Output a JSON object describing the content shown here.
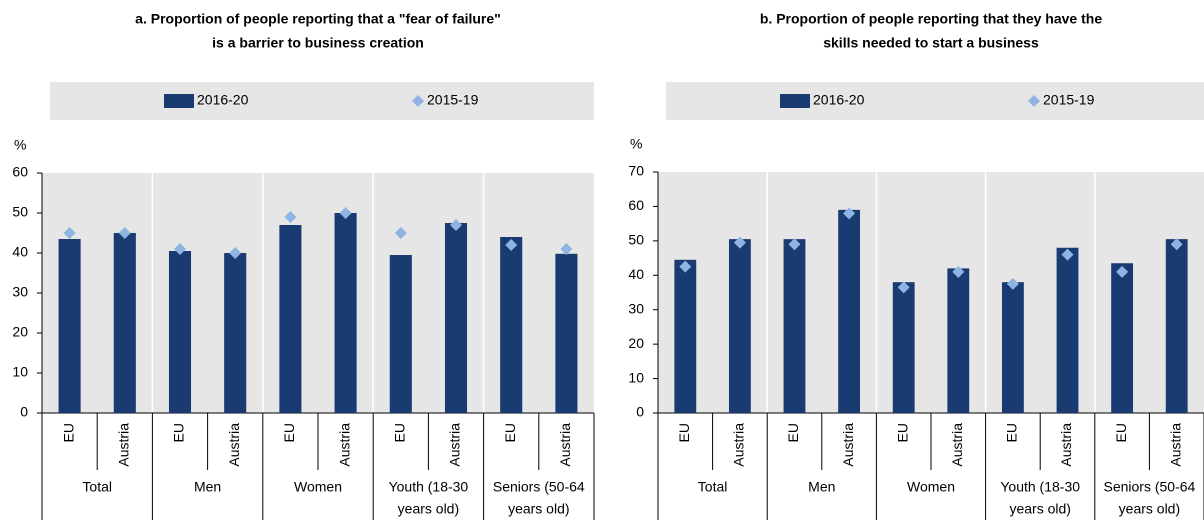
{
  "chart_data": [
    {
      "type": "bar",
      "title": [
        "a. Proportion of people reporting that a \"fear of failure\"",
        "is a barrier to business creation"
      ],
      "y_label": "%",
      "categories": [
        "EU",
        "Austria",
        "EU",
        "Austria",
        "EU",
        "Austria",
        "EU",
        "Austria",
        "EU",
        "Austria"
      ],
      "groups": [
        [
          "Total"
        ],
        [
          "Men"
        ],
        [
          "Women"
        ],
        [
          "Youth (18-30",
          "years old)"
        ],
        [
          "Seniors (50-64",
          "years old)"
        ]
      ],
      "series": [
        {
          "name": "2016-20",
          "color": "#1a3a72",
          "marker": "bar",
          "values": [
            43.5,
            45,
            40.5,
            40,
            47,
            50,
            39.5,
            47.5,
            44,
            39.8
          ]
        },
        {
          "name": "2015-19",
          "color": "#8fb4e3",
          "marker": "diamond",
          "values": [
            45,
            45,
            41,
            40,
            49,
            50,
            45,
            47,
            42,
            41
          ]
        }
      ],
      "ylim": [
        0,
        60
      ],
      "yticks": [
        0,
        10,
        20,
        30,
        40,
        50,
        60
      ]
    },
    {
      "type": "bar",
      "title": [
        "b. Proportion of people reporting that they have the",
        "skills needed to start a business"
      ],
      "y_label": "%",
      "categories": [
        "EU",
        "Austria",
        "EU",
        "Austria",
        "EU",
        "Austria",
        "EU",
        "Austria",
        "EU",
        "Austria"
      ],
      "groups": [
        [
          "Total"
        ],
        [
          "Men"
        ],
        [
          "Women"
        ],
        [
          "Youth (18-30",
          "years old)"
        ],
        [
          "Seniors (50-64",
          "years old)"
        ]
      ],
      "series": [
        {
          "name": "2016-20",
          "color": "#1a3a72",
          "marker": "bar",
          "values": [
            44.5,
            50.5,
            50.5,
            59,
            38,
            42,
            38,
            48,
            43.5,
            50.5
          ]
        },
        {
          "name": "2015-19",
          "color": "#8fb4e3",
          "marker": "diamond",
          "values": [
            42.5,
            49.5,
            49,
            58,
            36.5,
            41,
            37.5,
            46,
            41,
            49
          ]
        }
      ],
      "ylim": [
        0,
        70
      ],
      "yticks": [
        0,
        10,
        20,
        30,
        40,
        50,
        60,
        70
      ]
    }
  ]
}
